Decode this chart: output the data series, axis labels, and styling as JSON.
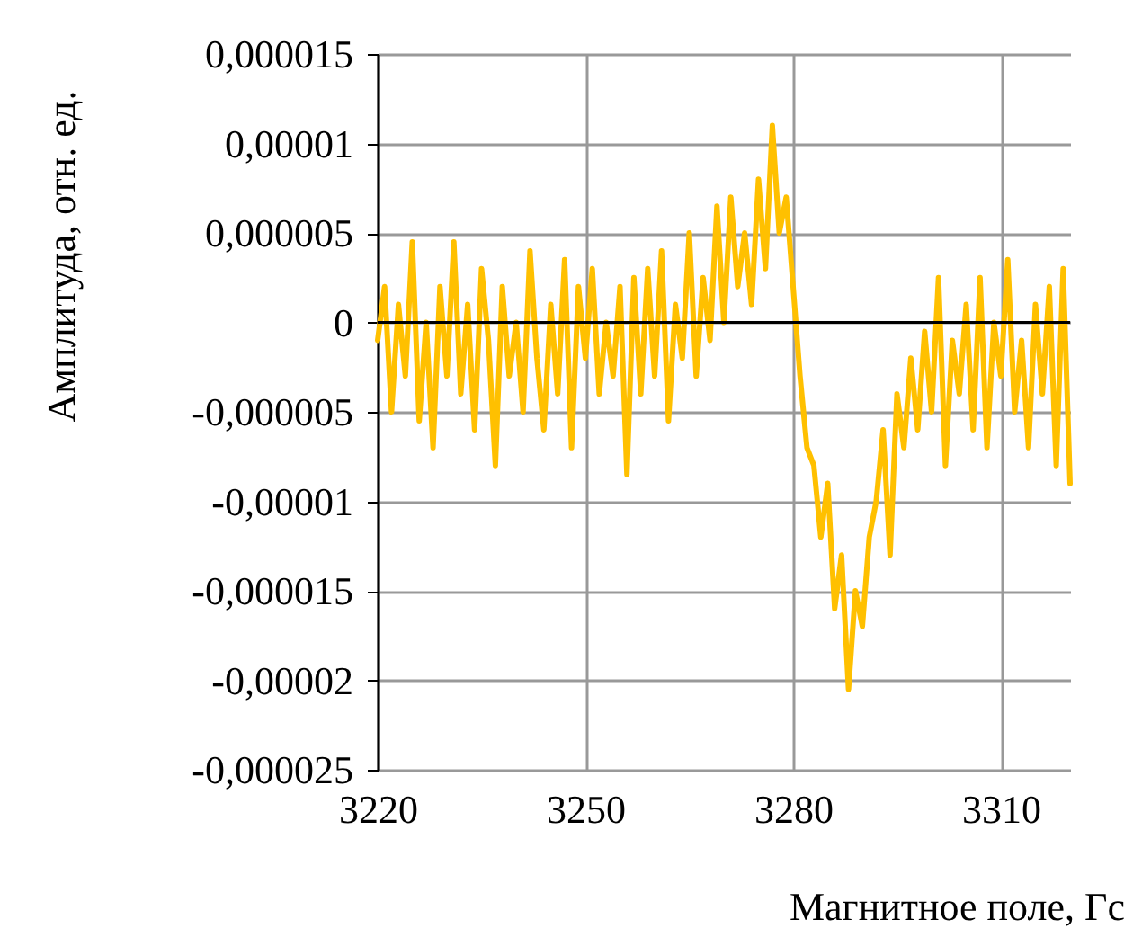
{
  "chart_data": {
    "type": "line",
    "xlabel": "Магнитное поле, Гс",
    "ylabel": "Амплитуда, отн. ед.",
    "x": [
      3220,
      3221,
      3222,
      3223,
      3224,
      3225,
      3226,
      3227,
      3228,
      3229,
      3230,
      3231,
      3232,
      3233,
      3234,
      3235,
      3236,
      3237,
      3238,
      3239,
      3240,
      3241,
      3242,
      3243,
      3244,
      3245,
      3246,
      3247,
      3248,
      3249,
      3250,
      3251,
      3252,
      3253,
      3254,
      3255,
      3256,
      3257,
      3258,
      3259,
      3260,
      3261,
      3262,
      3263,
      3264,
      3265,
      3266,
      3267,
      3268,
      3269,
      3270,
      3271,
      3272,
      3273,
      3274,
      3275,
      3276,
      3277,
      3278,
      3279,
      3280,
      3281,
      3282,
      3283,
      3284,
      3285,
      3286,
      3287,
      3288,
      3289,
      3290,
      3291,
      3292,
      3293,
      3294,
      3295,
      3296,
      3297,
      3298,
      3299,
      3300,
      3301,
      3302,
      3303,
      3304,
      3305,
      3306,
      3307,
      3308,
      3309,
      3310,
      3311,
      3312,
      3313,
      3314,
      3315,
      3316,
      3317,
      3318,
      3319,
      3320
    ],
    "series": [
      {
        "color": "#ffc000",
        "values": [
          -1e-06,
          2e-06,
          -5e-06,
          1e-06,
          -3e-06,
          4.5e-06,
          -5.5e-06,
          0,
          -7e-06,
          2e-06,
          -3e-06,
          4.5e-06,
          -4e-06,
          1e-06,
          -6e-06,
          3e-06,
          -1e-06,
          -8e-06,
          2e-06,
          -3e-06,
          0,
          -5e-06,
          4e-06,
          -2e-06,
          -6e-06,
          1e-06,
          -4e-06,
          3.5e-06,
          -7e-06,
          2e-06,
          -2e-06,
          3e-06,
          -4e-06,
          0,
          -3e-06,
          2e-06,
          -8.5e-06,
          2.5e-06,
          -4e-06,
          3e-06,
          -3e-06,
          4e-06,
          -5.5e-06,
          1e-06,
          -2e-06,
          5e-06,
          -3e-06,
          2.5e-06,
          -1e-06,
          6.5e-06,
          0,
          7e-06,
          2e-06,
          5e-06,
          1e-06,
          8e-06,
          3e-06,
          1.1e-05,
          5e-06,
          7e-06,
          2e-06,
          -3e-06,
          -7e-06,
          -8e-06,
          -1.2e-05,
          -9e-06,
          -1.6e-05,
          -1.3e-05,
          -2.05e-05,
          -1.5e-05,
          -1.7e-05,
          -1.2e-05,
          -1e-05,
          -6e-06,
          -1.3e-05,
          -4e-06,
          -7e-06,
          -2e-06,
          -6e-06,
          -5e-07,
          -5e-06,
          2.5e-06,
          -8e-06,
          -1e-06,
          -4e-06,
          1e-06,
          -6e-06,
          2.5e-06,
          -7e-06,
          0,
          -3e-06,
          3.5e-06,
          -5e-06,
          -1e-06,
          -7e-06,
          1e-06,
          -4e-06,
          2e-06,
          -8e-06,
          3e-06,
          -9e-06
        ]
      }
    ],
    "xlim": [
      3220,
      3320
    ],
    "xticks": [
      3220,
      3250,
      3280,
      3310
    ],
    "ylim": [
      -2.5e-05,
      1.5e-05
    ],
    "yticks": [
      {
        "value": -2.5e-05,
        "label": "-0,000025"
      },
      {
        "value": -2e-05,
        "label": "-0,00002"
      },
      {
        "value": -1.5e-05,
        "label": "-0,000015"
      },
      {
        "value": -1e-05,
        "label": "-0,00001"
      },
      {
        "value": -5e-06,
        "label": "-0,000005"
      },
      {
        "value": 0,
        "label": "0"
      },
      {
        "value": 5e-06,
        "label": "0,000005"
      },
      {
        "value": 1e-05,
        "label": "0,00001"
      },
      {
        "value": 1.5e-05,
        "label": "0,000015"
      }
    ],
    "ref_lines": [
      {
        "axis": "y",
        "value": 0,
        "color": "#000000"
      }
    ],
    "grid": true,
    "marker": "none",
    "line_style": "solid"
  }
}
